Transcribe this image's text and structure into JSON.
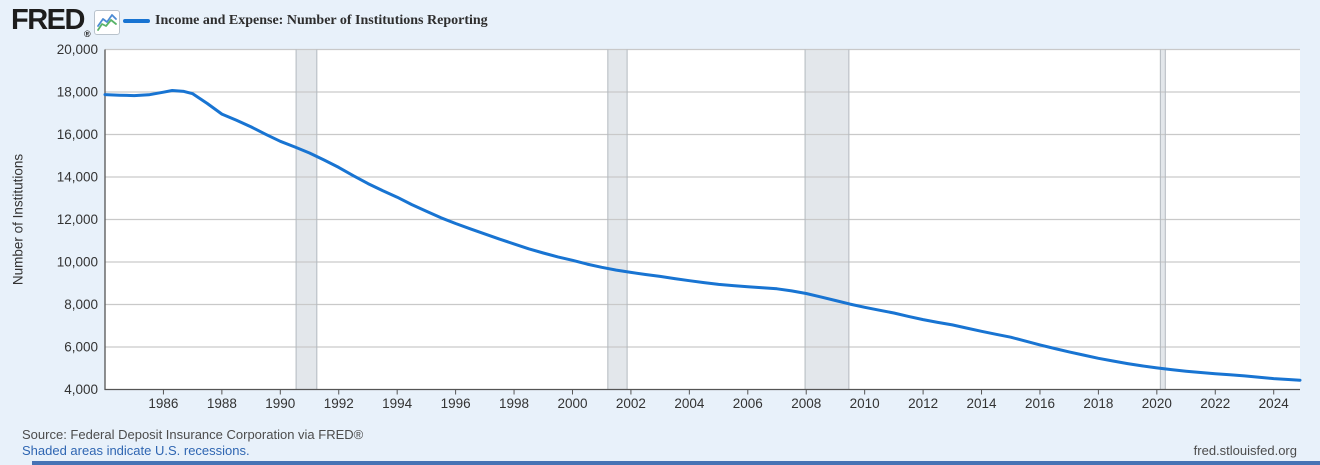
{
  "header": {
    "logo_text": "FRED",
    "logo_reg_mark": "®",
    "title": "Income and Expense: Number of Institutions Reporting"
  },
  "footer": {
    "source": "Source: Federal Deposit Insurance Corporation via FRED®",
    "recession_note": "Shaded areas indicate U.S. recessions.",
    "site": "fred.stlouisfed.org"
  },
  "colors": {
    "accent_blue": "#1874d2",
    "background": "#e8f1fa",
    "plot_background": "#ffffff",
    "grid": "#c9c9c9",
    "axis": "#555555",
    "recession_fill": "#e3e7eb",
    "recession_edge": "#b3b9bf",
    "tick_text": "#333333",
    "title_text": "#2e2e2e",
    "footer_text": "#4c4c4c",
    "link_blue": "#2f66b2",
    "logo_icon_blue": "#4b8bd4",
    "logo_icon_green": "#58b368"
  },
  "icons": {
    "logo_chart_icon": "fred-sparkline-icon"
  },
  "chart_data": {
    "type": "line",
    "title": "Income and Expense: Number of Institutions Reporting",
    "xlabel": "",
    "ylabel": "Number of Institutions",
    "x_domain": [
      1984,
      2024.9
    ],
    "ylim": [
      4000,
      20000
    ],
    "grid": "horizontal",
    "legend_position": "top-left",
    "x_ticks": [
      1986,
      1988,
      1990,
      1992,
      1994,
      1996,
      1998,
      2000,
      2002,
      2004,
      2006,
      2008,
      2010,
      2012,
      2014,
      2016,
      2018,
      2020,
      2022,
      2024
    ],
    "x_tick_labels": [
      "1986",
      "1988",
      "1990",
      "1992",
      "1994",
      "1996",
      "1998",
      "2000",
      "2002",
      "2004",
      "2006",
      "2008",
      "2010",
      "2012",
      "2014",
      "2016",
      "2018",
      "2020",
      "2022",
      "2024"
    ],
    "y_ticks": [
      4000,
      6000,
      8000,
      10000,
      12000,
      14000,
      16000,
      18000,
      20000
    ],
    "y_tick_labels": [
      "4,000",
      "6,000",
      "8,000",
      "10,000",
      "12,000",
      "14,000",
      "16,000",
      "18,000",
      "20,000"
    ],
    "recessions": [
      [
        1990.54,
        1991.25
      ],
      [
        2001.21,
        2001.87
      ],
      [
        2007.96,
        2009.46
      ],
      [
        2020.12,
        2020.29
      ]
    ],
    "series": [
      {
        "name": "Income and Expense: Number of Institutions Reporting",
        "color": "#1874d2",
        "x": [
          1984,
          1984.5,
          1985,
          1985.5,
          1986,
          1986.3,
          1986.7,
          1987,
          1987.5,
          1988,
          1988.5,
          1989,
          1989.5,
          1990,
          1990.5,
          1991,
          1991.5,
          1992,
          1992.5,
          1993,
          1993.5,
          1994,
          1994.5,
          1995,
          1995.5,
          1996,
          1996.5,
          1997,
          1997.5,
          1998,
          1998.5,
          1999,
          1999.5,
          2000,
          2000.5,
          2001,
          2001.5,
          2002,
          2002.5,
          2003,
          2003.5,
          2004,
          2004.5,
          2005,
          2005.5,
          2006,
          2006.5,
          2007,
          2007.5,
          2008,
          2008.5,
          2009,
          2009.5,
          2010,
          2010.5,
          2011,
          2011.5,
          2012,
          2012.5,
          2013,
          2013.5,
          2014,
          2014.5,
          2015,
          2015.5,
          2016,
          2016.5,
          2017,
          2017.5,
          2018,
          2018.5,
          2019,
          2019.5,
          2020,
          2020.5,
          2021,
          2021.5,
          2022,
          2022.5,
          2023,
          2023.5,
          2024,
          2024.5,
          2024.9
        ],
        "y": [
          17880,
          17850,
          17830,
          17870,
          17990,
          18070,
          18030,
          17920,
          17460,
          16960,
          16670,
          16360,
          16010,
          15680,
          15410,
          15130,
          14800,
          14450,
          14060,
          13690,
          13360,
          13050,
          12700,
          12390,
          12080,
          11810,
          11560,
          11320,
          11080,
          10850,
          10620,
          10425,
          10240,
          10080,
          9900,
          9750,
          9620,
          9510,
          9410,
          9320,
          9220,
          9120,
          9030,
          8945,
          8890,
          8835,
          8790,
          8740,
          8640,
          8520,
          8360,
          8190,
          8020,
          7870,
          7730,
          7600,
          7440,
          7290,
          7160,
          7040,
          6890,
          6740,
          6600,
          6460,
          6280,
          6100,
          5930,
          5770,
          5620,
          5470,
          5340,
          5220,
          5110,
          5015,
          4935,
          4860,
          4800,
          4745,
          4690,
          4640,
          4575,
          4515,
          4470,
          4440
        ]
      }
    ]
  }
}
